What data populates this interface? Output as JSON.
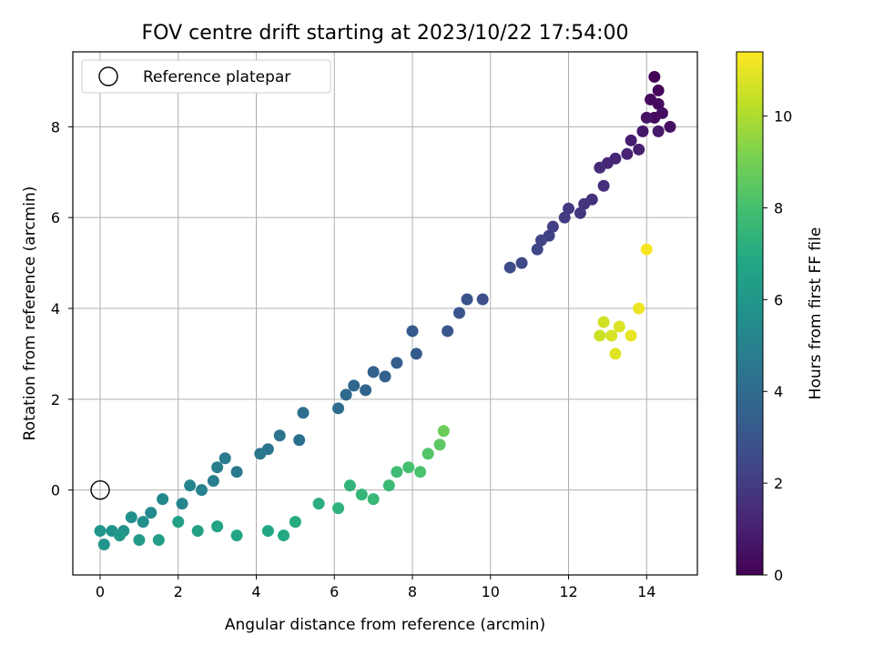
{
  "chart_data": {
    "type": "scatter",
    "title": "FOV centre drift starting at 2023/10/22 17:54:00",
    "xlabel": "Angular distance from reference (arcmin)",
    "ylabel": "Rotation from reference (arcmin)",
    "xlim": [
      -0.7,
      15.3
    ],
    "ylim": [
      -1.87,
      9.65
    ],
    "xticks": [
      0,
      2,
      4,
      6,
      8,
      10,
      12,
      14
    ],
    "yticks": [
      0,
      2,
      4,
      6,
      8
    ],
    "grid": true,
    "colormap": "viridis",
    "colorbar": {
      "label": "Hours from first FF file",
      "range": [
        0,
        11.4
      ],
      "ticks": [
        0,
        2,
        4,
        6,
        8,
        10
      ]
    },
    "legend": {
      "placement": "top-left",
      "entries": [
        {
          "label": "Reference platepar",
          "marker": "open-circle"
        }
      ]
    },
    "reference_point": {
      "x": 0,
      "y": 0
    },
    "points": [
      {
        "x": 14.2,
        "y": 9.1,
        "c": 0.1
      },
      {
        "x": 14.3,
        "y": 8.8,
        "c": 0.2
      },
      {
        "x": 14.1,
        "y": 8.6,
        "c": 0.3
      },
      {
        "x": 14.3,
        "y": 8.5,
        "c": 0.3
      },
      {
        "x": 14.2,
        "y": 8.2,
        "c": 0.4
      },
      {
        "x": 14.4,
        "y": 8.3,
        "c": 0.4
      },
      {
        "x": 14.6,
        "y": 8.0,
        "c": 0.5
      },
      {
        "x": 14.0,
        "y": 8.2,
        "c": 0.6
      },
      {
        "x": 13.9,
        "y": 7.9,
        "c": 0.7
      },
      {
        "x": 14.3,
        "y": 7.9,
        "c": 0.8
      },
      {
        "x": 13.6,
        "y": 7.7,
        "c": 0.9
      },
      {
        "x": 13.8,
        "y": 7.5,
        "c": 1.0
      },
      {
        "x": 13.5,
        "y": 7.4,
        "c": 1.1
      },
      {
        "x": 13.2,
        "y": 7.3,
        "c": 1.2
      },
      {
        "x": 13.0,
        "y": 7.2,
        "c": 1.3
      },
      {
        "x": 12.8,
        "y": 7.1,
        "c": 1.4
      },
      {
        "x": 12.9,
        "y": 6.7,
        "c": 1.5
      },
      {
        "x": 12.6,
        "y": 6.4,
        "c": 1.6
      },
      {
        "x": 12.4,
        "y": 6.3,
        "c": 1.7
      },
      {
        "x": 12.3,
        "y": 6.1,
        "c": 1.8
      },
      {
        "x": 12.0,
        "y": 6.2,
        "c": 1.9
      },
      {
        "x": 11.9,
        "y": 6.0,
        "c": 2.0
      },
      {
        "x": 11.6,
        "y": 5.8,
        "c": 2.1
      },
      {
        "x": 11.5,
        "y": 5.6,
        "c": 2.2
      },
      {
        "x": 11.3,
        "y": 5.5,
        "c": 2.3
      },
      {
        "x": 11.2,
        "y": 5.3,
        "c": 2.4
      },
      {
        "x": 10.8,
        "y": 5.0,
        "c": 2.5
      },
      {
        "x": 10.5,
        "y": 4.9,
        "c": 2.6
      },
      {
        "x": 9.8,
        "y": 4.2,
        "c": 2.8
      },
      {
        "x": 9.4,
        "y": 4.2,
        "c": 2.9
      },
      {
        "x": 9.2,
        "y": 3.9,
        "c": 3.0
      },
      {
        "x": 8.9,
        "y": 3.5,
        "c": 3.1
      },
      {
        "x": 8.0,
        "y": 3.5,
        "c": 3.2
      },
      {
        "x": 8.1,
        "y": 3.0,
        "c": 3.3
      },
      {
        "x": 7.6,
        "y": 2.8,
        "c": 3.4
      },
      {
        "x": 7.3,
        "y": 2.5,
        "c": 3.5
      },
      {
        "x": 7.0,
        "y": 2.6,
        "c": 3.6
      },
      {
        "x": 6.8,
        "y": 2.2,
        "c": 3.7
      },
      {
        "x": 6.5,
        "y": 2.3,
        "c": 3.8
      },
      {
        "x": 6.3,
        "y": 2.1,
        "c": 3.9
      },
      {
        "x": 6.1,
        "y": 1.8,
        "c": 4.0
      },
      {
        "x": 5.2,
        "y": 1.7,
        "c": 4.1
      },
      {
        "x": 5.1,
        "y": 1.1,
        "c": 4.2
      },
      {
        "x": 4.6,
        "y": 1.2,
        "c": 4.3
      },
      {
        "x": 4.3,
        "y": 0.9,
        "c": 4.4
      },
      {
        "x": 4.1,
        "y": 0.8,
        "c": 4.5
      },
      {
        "x": 3.5,
        "y": 0.4,
        "c": 4.6
      },
      {
        "x": 3.2,
        "y": 0.7,
        "c": 4.7
      },
      {
        "x": 3.0,
        "y": 0.5,
        "c": 4.8
      },
      {
        "x": 2.9,
        "y": 0.2,
        "c": 4.9
      },
      {
        "x": 2.6,
        "y": 0.0,
        "c": 5.0
      },
      {
        "x": 2.3,
        "y": 0.1,
        "c": 5.1
      },
      {
        "x": 2.1,
        "y": -0.3,
        "c": 5.2
      },
      {
        "x": 1.6,
        "y": -0.2,
        "c": 5.3
      },
      {
        "x": 1.3,
        "y": -0.5,
        "c": 5.4
      },
      {
        "x": 1.1,
        "y": -0.7,
        "c": 5.5
      },
      {
        "x": 0.8,
        "y": -0.6,
        "c": 5.6
      },
      {
        "x": 0.6,
        "y": -0.9,
        "c": 5.7
      },
      {
        "x": 0.3,
        "y": -0.9,
        "c": 5.8
      },
      {
        "x": 0.1,
        "y": -1.2,
        "c": 5.9
      },
      {
        "x": 0.0,
        "y": -0.9,
        "c": 6.0
      },
      {
        "x": 0.5,
        "y": -1.0,
        "c": 6.1
      },
      {
        "x": 1.0,
        "y": -1.1,
        "c": 6.2
      },
      {
        "x": 1.5,
        "y": -1.1,
        "c": 6.3
      },
      {
        "x": 2.0,
        "y": -0.7,
        "c": 6.4
      },
      {
        "x": 2.5,
        "y": -0.9,
        "c": 6.5
      },
      {
        "x": 3.0,
        "y": -0.8,
        "c": 6.6
      },
      {
        "x": 3.5,
        "y": -1.0,
        "c": 6.7
      },
      {
        "x": 4.3,
        "y": -0.9,
        "c": 6.8
      },
      {
        "x": 4.7,
        "y": -1.0,
        "c": 6.9
      },
      {
        "x": 5.0,
        "y": -0.7,
        "c": 7.0
      },
      {
        "x": 5.6,
        "y": -0.3,
        "c": 7.1
      },
      {
        "x": 6.1,
        "y": -0.4,
        "c": 7.3
      },
      {
        "x": 6.4,
        "y": 0.1,
        "c": 7.4
      },
      {
        "x": 6.7,
        "y": -0.1,
        "c": 7.5
      },
      {
        "x": 7.0,
        "y": -0.2,
        "c": 7.6
      },
      {
        "x": 7.4,
        "y": 0.1,
        "c": 7.7
      },
      {
        "x": 7.6,
        "y": 0.4,
        "c": 7.8
      },
      {
        "x": 7.9,
        "y": 0.5,
        "c": 8.0
      },
      {
        "x": 8.2,
        "y": 0.4,
        "c": 8.1
      },
      {
        "x": 8.4,
        "y": 0.8,
        "c": 8.3
      },
      {
        "x": 8.7,
        "y": 1.0,
        "c": 8.5
      },
      {
        "x": 8.8,
        "y": 1.3,
        "c": 8.8
      },
      {
        "x": 12.8,
        "y": 3.4,
        "c": 10.5
      },
      {
        "x": 12.9,
        "y": 3.7,
        "c": 10.6
      },
      {
        "x": 13.1,
        "y": 3.4,
        "c": 10.7
      },
      {
        "x": 13.3,
        "y": 3.6,
        "c": 10.8
      },
      {
        "x": 13.2,
        "y": 3.0,
        "c": 10.9
      },
      {
        "x": 13.6,
        "y": 3.4,
        "c": 11.0
      },
      {
        "x": 13.8,
        "y": 4.0,
        "c": 11.1
      },
      {
        "x": 14.0,
        "y": 5.3,
        "c": 11.3
      }
    ]
  }
}
